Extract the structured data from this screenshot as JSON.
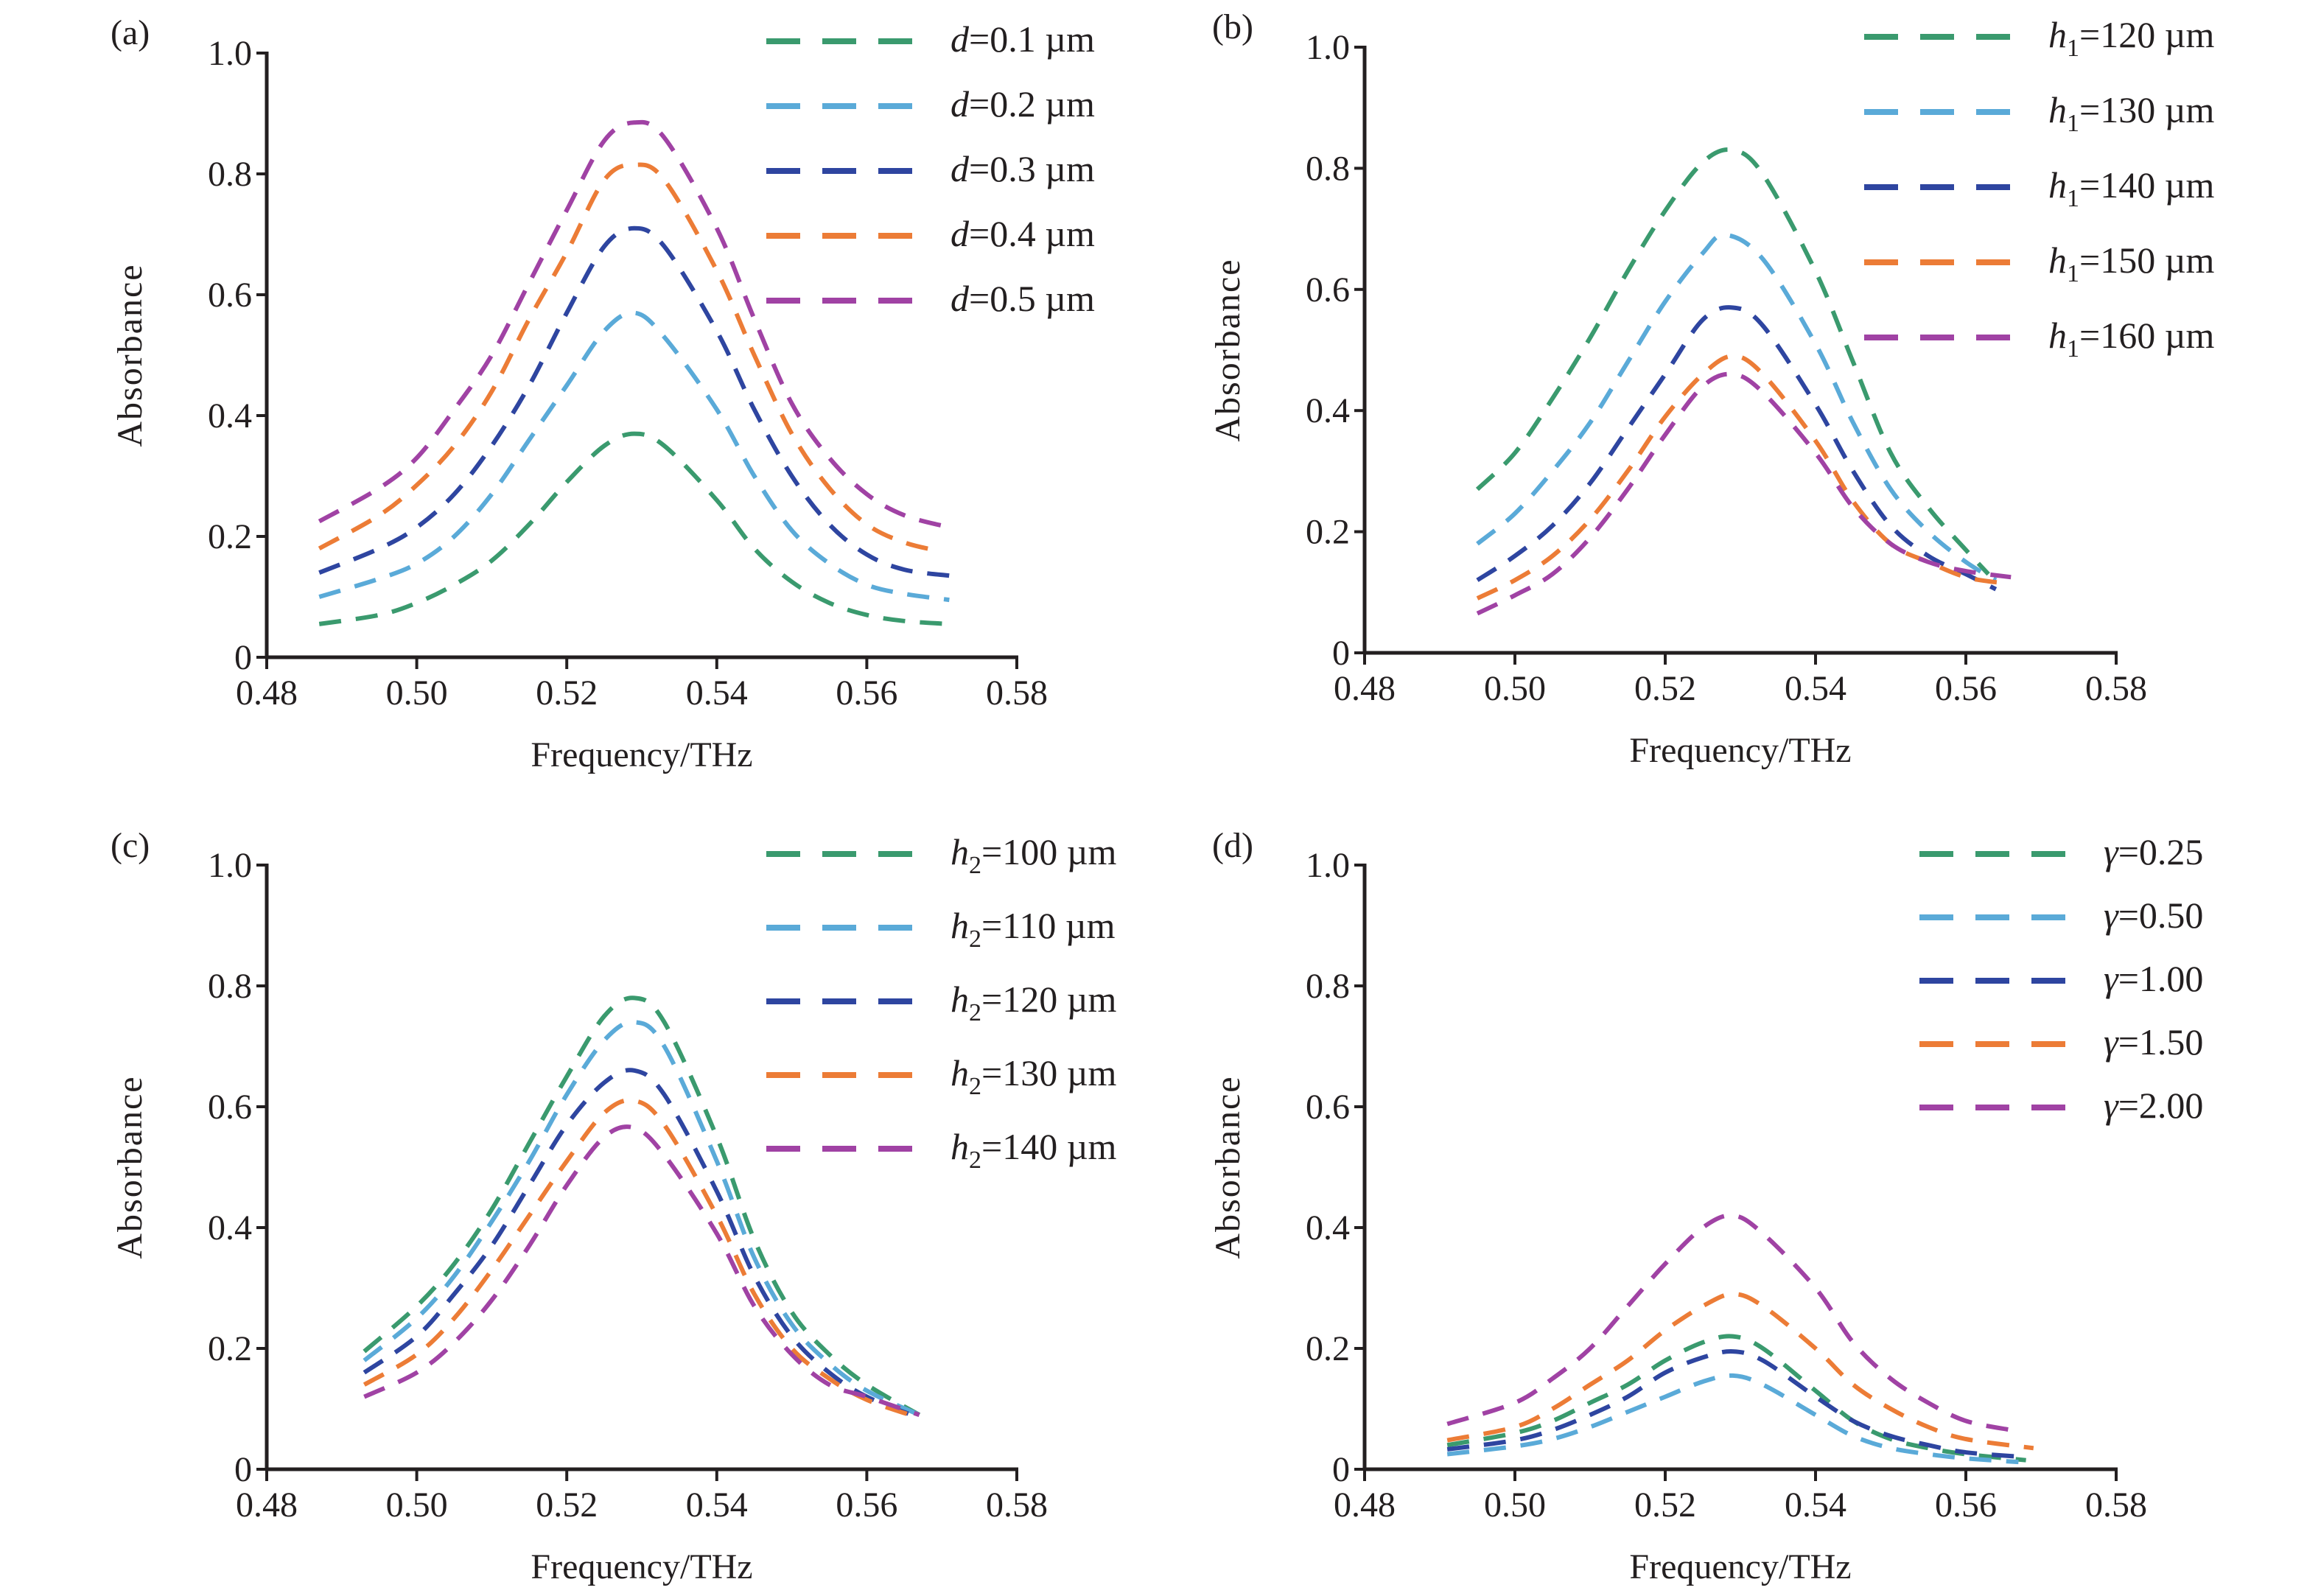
{
  "chart_data": [
    {
      "type": "line",
      "panel_label": "(a)",
      "title": "",
      "xlabel": "Frequency/THz",
      "ylabel": "Absorbance",
      "xlim": [
        0.48,
        0.58
      ],
      "ylim": [
        0,
        1.0
      ],
      "xticks": [
        "0.48",
        "0.50",
        "0.52",
        "0.54",
        "0.56",
        "0.58"
      ],
      "yticks": [
        "0",
        "0.2",
        "0.4",
        "0.6",
        "0.8",
        "1.0"
      ],
      "grid": false,
      "legend_position": "top-right",
      "series": [
        {
          "name": "d=0.1 µm",
          "var": "d",
          "sub": "",
          "value": "=0.1 µm",
          "color": "#3a9a6e",
          "x": [
            0.487,
            0.495,
            0.5,
            0.505,
            0.51,
            0.515,
            0.52,
            0.525,
            0.529,
            0.533,
            0.54,
            0.545,
            0.55,
            0.555,
            0.56,
            0.565,
            0.571
          ],
          "y": [
            0.055,
            0.07,
            0.09,
            0.12,
            0.16,
            0.22,
            0.29,
            0.35,
            0.37,
            0.35,
            0.26,
            0.18,
            0.125,
            0.09,
            0.07,
            0.06,
            0.055
          ]
        },
        {
          "name": "d=0.2 µm",
          "var": "d",
          "sub": "",
          "value": "=0.2 µm",
          "color": "#5aaad8",
          "x": [
            0.487,
            0.495,
            0.5,
            0.505,
            0.51,
            0.515,
            0.52,
            0.525,
            0.529,
            0.533,
            0.54,
            0.545,
            0.55,
            0.555,
            0.56,
            0.565,
            0.571
          ],
          "y": [
            0.1,
            0.13,
            0.155,
            0.2,
            0.27,
            0.36,
            0.45,
            0.54,
            0.57,
            0.53,
            0.41,
            0.3,
            0.21,
            0.155,
            0.12,
            0.105,
            0.095
          ]
        },
        {
          "name": "d=0.3 µm",
          "var": "d",
          "sub": "",
          "value": "=0.3 µm",
          "color": "#2e45a0",
          "x": [
            0.487,
            0.495,
            0.5,
            0.505,
            0.51,
            0.515,
            0.52,
            0.525,
            0.529,
            0.533,
            0.54,
            0.545,
            0.55,
            0.555,
            0.56,
            0.565,
            0.571
          ],
          "y": [
            0.14,
            0.18,
            0.215,
            0.27,
            0.35,
            0.45,
            0.57,
            0.68,
            0.71,
            0.68,
            0.54,
            0.41,
            0.3,
            0.22,
            0.17,
            0.145,
            0.135
          ]
        },
        {
          "name": "d=0.4 µm",
          "var": "d",
          "sub": "",
          "value": "=0.4 µm",
          "color": "#ec7c36",
          "x": [
            0.487,
            0.495,
            0.5,
            0.505,
            0.51,
            0.515,
            0.52,
            0.525,
            0.529,
            0.533,
            0.54,
            0.545,
            0.55,
            0.555,
            0.56,
            0.565,
            0.57
          ],
          "y": [
            0.18,
            0.235,
            0.285,
            0.35,
            0.44,
            0.56,
            0.67,
            0.79,
            0.815,
            0.79,
            0.64,
            0.5,
            0.37,
            0.28,
            0.22,
            0.19,
            0.175
          ]
        },
        {
          "name": "d=0.5 µm",
          "var": "d",
          "sub": "",
          "value": "=0.5 µm",
          "color": "#a042a4",
          "x": [
            0.487,
            0.495,
            0.5,
            0.505,
            0.51,
            0.515,
            0.52,
            0.525,
            0.529,
            0.533,
            0.54,
            0.545,
            0.55,
            0.555,
            0.56,
            0.565,
            0.571
          ],
          "y": [
            0.225,
            0.28,
            0.33,
            0.41,
            0.5,
            0.62,
            0.74,
            0.855,
            0.885,
            0.86,
            0.71,
            0.56,
            0.42,
            0.33,
            0.27,
            0.235,
            0.215
          ]
        }
      ]
    },
    {
      "type": "line",
      "panel_label": "(b)",
      "title": "",
      "xlabel": "Frequency/THz",
      "ylabel": "Absorbance",
      "xlim": [
        0.48,
        0.58
      ],
      "ylim": [
        0,
        1.0
      ],
      "xticks": [
        "0.48",
        "0.50",
        "0.52",
        "0.54",
        "0.56",
        "0.58"
      ],
      "yticks": [
        "0",
        "0.2",
        "0.4",
        "0.6",
        "0.8",
        "1.0"
      ],
      "grid": false,
      "legend_position": "top-right",
      "series": [
        {
          "name": "h1=120 µm",
          "var": "h",
          "sub": "1",
          "value": "=120 µm",
          "color": "#3a9a6e",
          "x": [
            0.495,
            0.5,
            0.505,
            0.51,
            0.515,
            0.52,
            0.525,
            0.529,
            0.533,
            0.54,
            0.545,
            0.55,
            0.555,
            0.56,
            0.563
          ],
          "y": [
            0.27,
            0.33,
            0.42,
            0.52,
            0.63,
            0.73,
            0.81,
            0.83,
            0.79,
            0.63,
            0.48,
            0.33,
            0.24,
            0.17,
            0.13
          ]
        },
        {
          "name": "h1=130 µm",
          "var": "h",
          "sub": "1",
          "value": "=130 µm",
          "color": "#5aaad8",
          "x": [
            0.495,
            0.5,
            0.505,
            0.51,
            0.515,
            0.52,
            0.525,
            0.528,
            0.533,
            0.54,
            0.545,
            0.55,
            0.555,
            0.56,
            0.564
          ],
          "y": [
            0.18,
            0.23,
            0.3,
            0.38,
            0.48,
            0.58,
            0.66,
            0.69,
            0.65,
            0.51,
            0.38,
            0.27,
            0.2,
            0.15,
            0.12
          ]
        },
        {
          "name": "h1=140 µm",
          "var": "h",
          "sub": "1",
          "value": "=140 µm",
          "color": "#2e45a0",
          "x": [
            0.495,
            0.5,
            0.505,
            0.51,
            0.515,
            0.52,
            0.525,
            0.529,
            0.533,
            0.54,
            0.545,
            0.55,
            0.555,
            0.56,
            0.564
          ],
          "y": [
            0.12,
            0.16,
            0.21,
            0.28,
            0.37,
            0.46,
            0.55,
            0.57,
            0.54,
            0.41,
            0.3,
            0.21,
            0.16,
            0.13,
            0.105
          ]
        },
        {
          "name": "h1=150 µm",
          "var": "h",
          "sub": "1",
          "value": "=150 µm",
          "color": "#ec7c36",
          "x": [
            0.495,
            0.5,
            0.505,
            0.51,
            0.515,
            0.52,
            0.525,
            0.529,
            0.533,
            0.54,
            0.545,
            0.55,
            0.555,
            0.56,
            0.565
          ],
          "y": [
            0.09,
            0.12,
            0.16,
            0.22,
            0.3,
            0.39,
            0.46,
            0.49,
            0.46,
            0.35,
            0.25,
            0.18,
            0.15,
            0.125,
            0.115
          ]
        },
        {
          "name": "h1=160 µm",
          "var": "h",
          "sub": "1",
          "value": "=160 µm",
          "color": "#a042a4",
          "x": [
            0.495,
            0.5,
            0.505,
            0.51,
            0.515,
            0.52,
            0.525,
            0.529,
            0.533,
            0.54,
            0.545,
            0.55,
            0.555,
            0.56,
            0.566
          ],
          "y": [
            0.065,
            0.095,
            0.13,
            0.19,
            0.27,
            0.36,
            0.44,
            0.46,
            0.43,
            0.33,
            0.24,
            0.18,
            0.15,
            0.135,
            0.125
          ]
        }
      ]
    },
    {
      "type": "line",
      "panel_label": "(c)",
      "title": "",
      "xlabel": "Frequency/THz",
      "ylabel": "Absorbance",
      "xlim": [
        0.48,
        0.58
      ],
      "ylim": [
        0,
        1.0
      ],
      "xticks": [
        "0.48",
        "0.50",
        "0.52",
        "0.54",
        "0.56",
        "0.58"
      ],
      "yticks": [
        "0",
        "0.2",
        "0.4",
        "0.6",
        "0.8",
        "1.0"
      ],
      "grid": false,
      "legend_position": "top-right",
      "series": [
        {
          "name": "h2=100 µm",
          "var": "h",
          "sub": "2",
          "value": "=100 µm",
          "color": "#3a9a6e",
          "x": [
            0.493,
            0.5,
            0.505,
            0.51,
            0.515,
            0.52,
            0.525,
            0.529,
            0.533,
            0.54,
            0.545,
            0.55,
            0.555,
            0.56,
            0.567
          ],
          "y": [
            0.195,
            0.27,
            0.34,
            0.43,
            0.54,
            0.65,
            0.75,
            0.78,
            0.74,
            0.55,
            0.38,
            0.26,
            0.19,
            0.14,
            0.09
          ]
        },
        {
          "name": "h2=110 µm",
          "var": "h",
          "sub": "2",
          "value": "=110 µm",
          "color": "#5aaad8",
          "x": [
            0.493,
            0.5,
            0.505,
            0.51,
            0.515,
            0.52,
            0.525,
            0.529,
            0.533,
            0.54,
            0.545,
            0.55,
            0.555,
            0.56,
            0.567
          ],
          "y": [
            0.18,
            0.25,
            0.32,
            0.41,
            0.51,
            0.62,
            0.71,
            0.74,
            0.7,
            0.51,
            0.35,
            0.24,
            0.175,
            0.13,
            0.09
          ]
        },
        {
          "name": "h2=120 µm",
          "var": "h",
          "sub": "2",
          "value": "=120 µm",
          "color": "#2e45a0",
          "x": [
            0.493,
            0.5,
            0.505,
            0.51,
            0.515,
            0.52,
            0.525,
            0.529,
            0.533,
            0.54,
            0.545,
            0.55,
            0.555,
            0.56,
            0.567
          ],
          "y": [
            0.16,
            0.22,
            0.29,
            0.37,
            0.47,
            0.57,
            0.64,
            0.66,
            0.62,
            0.46,
            0.32,
            0.22,
            0.16,
            0.12,
            0.085
          ]
        },
        {
          "name": "h2=130 µm",
          "var": "h",
          "sub": "2",
          "value": "=130 µm",
          "color": "#ec7c36",
          "x": [
            0.493,
            0.5,
            0.505,
            0.51,
            0.515,
            0.52,
            0.525,
            0.529,
            0.533,
            0.54,
            0.545,
            0.55,
            0.555,
            0.56,
            0.567
          ],
          "y": [
            0.14,
            0.19,
            0.25,
            0.33,
            0.42,
            0.51,
            0.59,
            0.61,
            0.57,
            0.42,
            0.29,
            0.2,
            0.15,
            0.115,
            0.085
          ]
        },
        {
          "name": "h2=140 µm",
          "var": "h",
          "sub": "2",
          "value": "=140 µm",
          "color": "#a042a4",
          "x": [
            0.493,
            0.5,
            0.505,
            0.51,
            0.515,
            0.52,
            0.525,
            0.529,
            0.533,
            0.54,
            0.545,
            0.55,
            0.555,
            0.56,
            0.567
          ],
          "y": [
            0.12,
            0.16,
            0.21,
            0.28,
            0.37,
            0.47,
            0.55,
            0.565,
            0.52,
            0.39,
            0.27,
            0.19,
            0.14,
            0.12,
            0.09
          ]
        }
      ]
    },
    {
      "type": "line",
      "panel_label": "(d)",
      "title": "",
      "xlabel": "Frequency/THz",
      "ylabel": "Absorbance",
      "xlim": [
        0.48,
        0.58
      ],
      "ylim": [
        0,
        1.0
      ],
      "xticks": [
        "0.48",
        "0.50",
        "0.52",
        "0.54",
        "0.56",
        "0.58"
      ],
      "yticks": [
        "0",
        "0.2",
        "0.4",
        "0.6",
        "0.8",
        "1.0"
      ],
      "grid": false,
      "legend_position": "top-right",
      "series": [
        {
          "name": "γ=0.25",
          "var": "γ",
          "sub": "",
          "value": "=0.25",
          "color": "#3a9a6e",
          "x": [
            0.491,
            0.5,
            0.505,
            0.51,
            0.515,
            0.52,
            0.525,
            0.529,
            0.533,
            0.54,
            0.545,
            0.55,
            0.555,
            0.56,
            0.568
          ],
          "y": [
            0.04,
            0.06,
            0.08,
            0.11,
            0.14,
            0.18,
            0.21,
            0.22,
            0.2,
            0.13,
            0.08,
            0.05,
            0.035,
            0.025,
            0.015
          ]
        },
        {
          "name": "γ=0.50",
          "var": "γ",
          "sub": "",
          "value": "=0.50",
          "color": "#5aaad8",
          "x": [
            0.491,
            0.5,
            0.505,
            0.51,
            0.515,
            0.52,
            0.525,
            0.529,
            0.533,
            0.54,
            0.545,
            0.55,
            0.555,
            0.56,
            0.567
          ],
          "y": [
            0.025,
            0.038,
            0.05,
            0.07,
            0.095,
            0.12,
            0.145,
            0.155,
            0.14,
            0.09,
            0.055,
            0.035,
            0.025,
            0.018,
            0.012
          ]
        },
        {
          "name": "γ=1.00",
          "var": "γ",
          "sub": "",
          "value": "=1.00",
          "color": "#2e45a0",
          "x": [
            0.491,
            0.5,
            0.505,
            0.51,
            0.515,
            0.52,
            0.525,
            0.529,
            0.533,
            0.54,
            0.545,
            0.55,
            0.555,
            0.56,
            0.568
          ],
          "y": [
            0.033,
            0.048,
            0.065,
            0.09,
            0.12,
            0.16,
            0.185,
            0.195,
            0.18,
            0.12,
            0.08,
            0.055,
            0.04,
            0.028,
            0.02
          ]
        },
        {
          "name": "γ=1.50",
          "var": "γ",
          "sub": "",
          "value": "=1.50",
          "color": "#ec7c36",
          "x": [
            0.491,
            0.5,
            0.505,
            0.51,
            0.515,
            0.52,
            0.525,
            0.529,
            0.533,
            0.54,
            0.545,
            0.55,
            0.555,
            0.56,
            0.569
          ],
          "y": [
            0.048,
            0.07,
            0.1,
            0.14,
            0.18,
            0.23,
            0.27,
            0.29,
            0.27,
            0.2,
            0.14,
            0.1,
            0.07,
            0.05,
            0.035
          ]
        },
        {
          "name": "γ=2.00",
          "var": "γ",
          "sub": "",
          "value": "=2.00",
          "color": "#a042a4",
          "x": [
            0.491,
            0.5,
            0.505,
            0.51,
            0.515,
            0.52,
            0.525,
            0.529,
            0.533,
            0.54,
            0.545,
            0.55,
            0.555,
            0.56,
            0.566
          ],
          "y": [
            0.075,
            0.11,
            0.15,
            0.2,
            0.27,
            0.34,
            0.4,
            0.42,
            0.39,
            0.3,
            0.21,
            0.15,
            0.11,
            0.08,
            0.065
          ]
        }
      ]
    }
  ]
}
